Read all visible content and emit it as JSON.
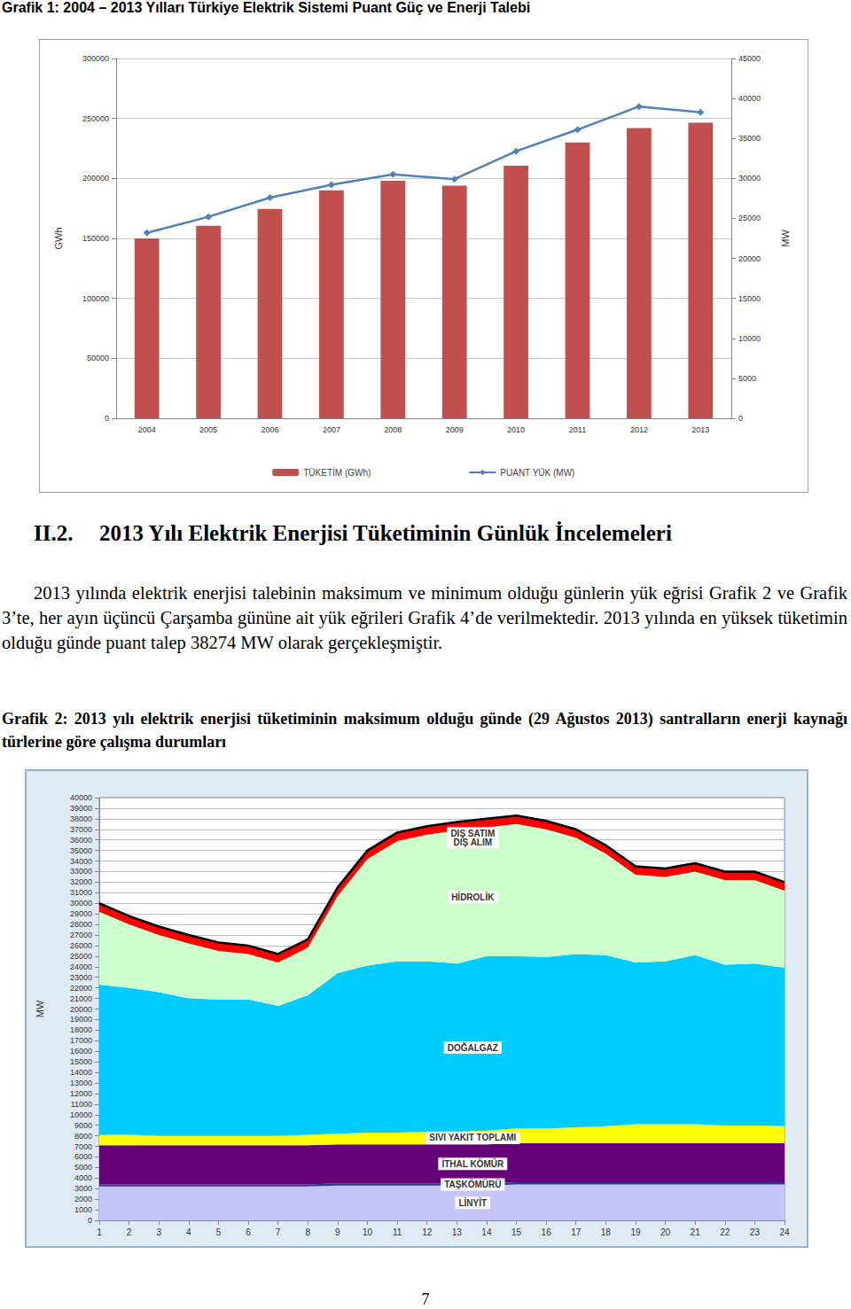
{
  "caption1": "Grafik 1: 2004 – 2013 Yılları Türkiye Elektrik Sistemi Puant Güç ve Enerji Talebi",
  "section_number": "II.2.",
  "section_title": "2013 Yılı Elektrik Enerjisi Tüketiminin Günlük İncelemeleri",
  "paragraph": "2013 yılında elektrik enerjisi talebinin maksimum ve minimum olduğu günlerin yük eğrisi Grafik 2 ve Grafik 3’te, her ayın üçüncü Çarşamba gününe ait yük eğrileri Grafik 4’de verilmektedir. 2013 yılında en yüksek tüketimin olduğu günde puant talep 38274 MW olarak gerçekleşmiştir.",
  "caption2": "Grafik 2: 2013 yılı elektrik enerjisi tüketiminin maksimum olduğu günde (29 Ağustos 2013) santralların enerji kaynağı türlerine göre çalışma durumları",
  "page_number": "7",
  "chart_data": [
    {
      "type": "bar",
      "categories": [
        "2004",
        "2005",
        "2006",
        "2007",
        "2008",
        "2009",
        "2010",
        "2011",
        "2012",
        "2013"
      ],
      "y_label": "GWh",
      "y2_label": "MW",
      "ylim": [
        0,
        300000
      ],
      "yticks": [
        0,
        50000,
        100000,
        150000,
        200000,
        250000,
        300000
      ],
      "y2lim": [
        0,
        45000
      ],
      "y2ticks": [
        0,
        5000,
        10000,
        15000,
        20000,
        25000,
        30000,
        35000,
        40000,
        45000
      ],
      "grid": true,
      "legend": "bottom",
      "series": [
        {
          "name": "TÜKETİM (GWh)",
          "type": "bar",
          "color": "#c0504d",
          "values": [
            150000,
            160500,
            174500,
            190000,
            198000,
            194000,
            210500,
            230000,
            242000,
            246500
          ]
        },
        {
          "name": "PUANT YÜK (MW)",
          "type": "line",
          "color": "#4f81bd",
          "marker": "diamond",
          "axis": "y2",
          "values": [
            23200,
            25200,
            27600,
            29200,
            30500,
            29900,
            33400,
            36100,
            39000,
            38274
          ]
        }
      ]
    },
    {
      "type": "area",
      "stacked": true,
      "categories": [
        "1",
        "2",
        "3",
        "4",
        "5",
        "6",
        "7",
        "8",
        "9",
        "10",
        "11",
        "12",
        "13",
        "14",
        "15",
        "16",
        "17",
        "18",
        "19",
        "20",
        "21",
        "22",
        "23",
        "24"
      ],
      "y_label": "MW",
      "ylim": [
        0,
        40000
      ],
      "yticks": [
        0,
        1000,
        2000,
        3000,
        4000,
        5000,
        6000,
        7000,
        8000,
        9000,
        10000,
        11000,
        12000,
        13000,
        14000,
        15000,
        16000,
        17000,
        18000,
        19000,
        20000,
        21000,
        22000,
        23000,
        24000,
        25000,
        26000,
        27000,
        28000,
        29000,
        30000,
        31000,
        32000,
        33000,
        34000,
        35000,
        36000,
        37000,
        38000,
        39000,
        40000
      ],
      "grid": true,
      "series": [
        {
          "name": "LİNYİT",
          "color": "#c4c4f6",
          "values": [
            3200,
            3200,
            3200,
            3200,
            3200,
            3200,
            3200,
            3200,
            3300,
            3300,
            3300,
            3300,
            3300,
            3300,
            3400,
            3400,
            3400,
            3400,
            3400,
            3400,
            3400,
            3400,
            3400,
            3400
          ]
        },
        {
          "name": "TAŞKÖMÜRÜ",
          "color": "#333399",
          "values": [
            200,
            200,
            200,
            200,
            200,
            200,
            200,
            200,
            200,
            200,
            200,
            200,
            200,
            200,
            200,
            200,
            200,
            200,
            200,
            200,
            200,
            200,
            200,
            200
          ]
        },
        {
          "name": "İTHAL KÖMÜR",
          "color": "#660077",
          "values": [
            3700,
            3700,
            3700,
            3700,
            3700,
            3700,
            3700,
            3700,
            3700,
            3700,
            3700,
            3700,
            3700,
            3700,
            3700,
            3700,
            3700,
            3700,
            3700,
            3700,
            3700,
            3700,
            3700,
            3700
          ]
        },
        {
          "name": "SIVI YAKIT TOPLAMI",
          "color": "#ffff00",
          "values": [
            1000,
            1000,
            900,
            900,
            900,
            900,
            900,
            1000,
            1000,
            1100,
            1100,
            1200,
            1200,
            1300,
            1400,
            1400,
            1500,
            1600,
            1800,
            1800,
            1800,
            1700,
            1700,
            1600
          ]
        },
        {
          "name": "DOĞALGAZ",
          "color": "#00ccff",
          "values": [
            14200,
            13900,
            13600,
            13000,
            12900,
            12900,
            12300,
            13200,
            15200,
            15800,
            16200,
            16100,
            15900,
            16500,
            16300,
            16200,
            16400,
            16200,
            15300,
            15400,
            16000,
            15200,
            15300,
            15000
          ]
        },
        {
          "name": "HİDROLİK",
          "color": "#ccffcc",
          "values": [
            6900,
            6000,
            5400,
            5200,
            4600,
            4300,
            4100,
            4500,
            7300,
            10100,
            11400,
            12000,
            12600,
            12200,
            12500,
            12100,
            11000,
            9600,
            8300,
            8000,
            7900,
            8000,
            7900,
            7300
          ]
        },
        {
          "name": "DIŞ SATIM\nDIŞ ALIM",
          "color": "#ff0000",
          "values": [
            800,
            800,
            800,
            800,
            800,
            800,
            800,
            800,
            800,
            800,
            800,
            800,
            800,
            800,
            800,
            800,
            800,
            800,
            800,
            800,
            800,
            800,
            800,
            800
          ]
        }
      ]
    }
  ]
}
